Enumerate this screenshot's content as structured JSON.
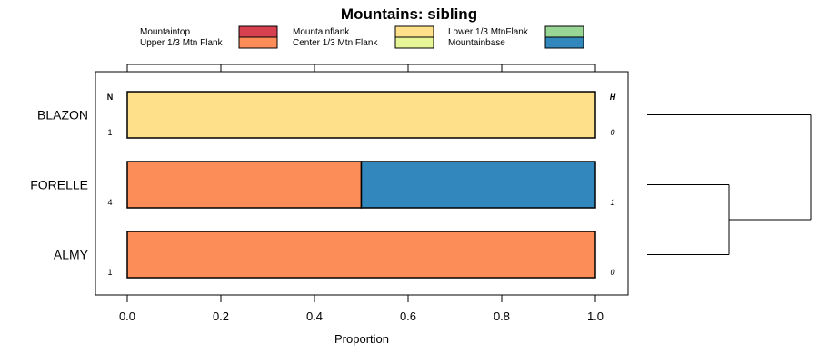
{
  "chart_data": {
    "type": "bar",
    "stacked": true,
    "orientation": "horizontal",
    "title": "Mountains: sibling",
    "xlabel": "Proportion",
    "ylabel": "",
    "xlim": [
      0,
      1
    ],
    "xticks": [
      "0.0",
      "0.2",
      "0.4",
      "0.6",
      "0.8",
      "1.0"
    ],
    "xtick_values": [
      0,
      0.2,
      0.4,
      0.6,
      0.8,
      1.0
    ],
    "column_headers": {
      "n": "N",
      "h": "H"
    },
    "legend": [
      {
        "name": "Mountaintop",
        "color": "#d7404f"
      },
      {
        "name": "Upper 1/3 Mtn Flank",
        "color": "#fc8d59"
      },
      {
        "name": "Mountainflank",
        "color": "#fee08b"
      },
      {
        "name": "Center 1/3 Mtn Flank",
        "color": "#e6f598"
      },
      {
        "name": "Lower 1/3 MtnFlank",
        "color": "#99d594"
      },
      {
        "name": "Mountainbase",
        "color": "#3288bd"
      }
    ],
    "rows": [
      {
        "label": "BLAZON",
        "n": "1",
        "h": "0",
        "segments": [
          {
            "category": "Mountainflank",
            "value": 1.0
          }
        ]
      },
      {
        "label": "FORELLE",
        "n": "4",
        "h": "1",
        "segments": [
          {
            "category": "Upper 1/3 Mtn Flank",
            "value": 0.5
          },
          {
            "category": "Mountainbase",
            "value": 0.5
          }
        ]
      },
      {
        "label": "ALMY",
        "n": "1",
        "h": "0",
        "segments": [
          {
            "category": "Upper 1/3 Mtn Flank",
            "value": 1.0
          }
        ]
      }
    ],
    "dendrogram": {
      "leaves": [
        "BLAZON",
        "FORELLE",
        "ALMY"
      ],
      "merges": [
        {
          "members": [
            "FORELLE",
            "ALMY"
          ],
          "height": 0.5
        },
        {
          "members": [
            "BLAZON",
            "FORELLE",
            "ALMY"
          ],
          "height": 1.0
        }
      ]
    }
  }
}
